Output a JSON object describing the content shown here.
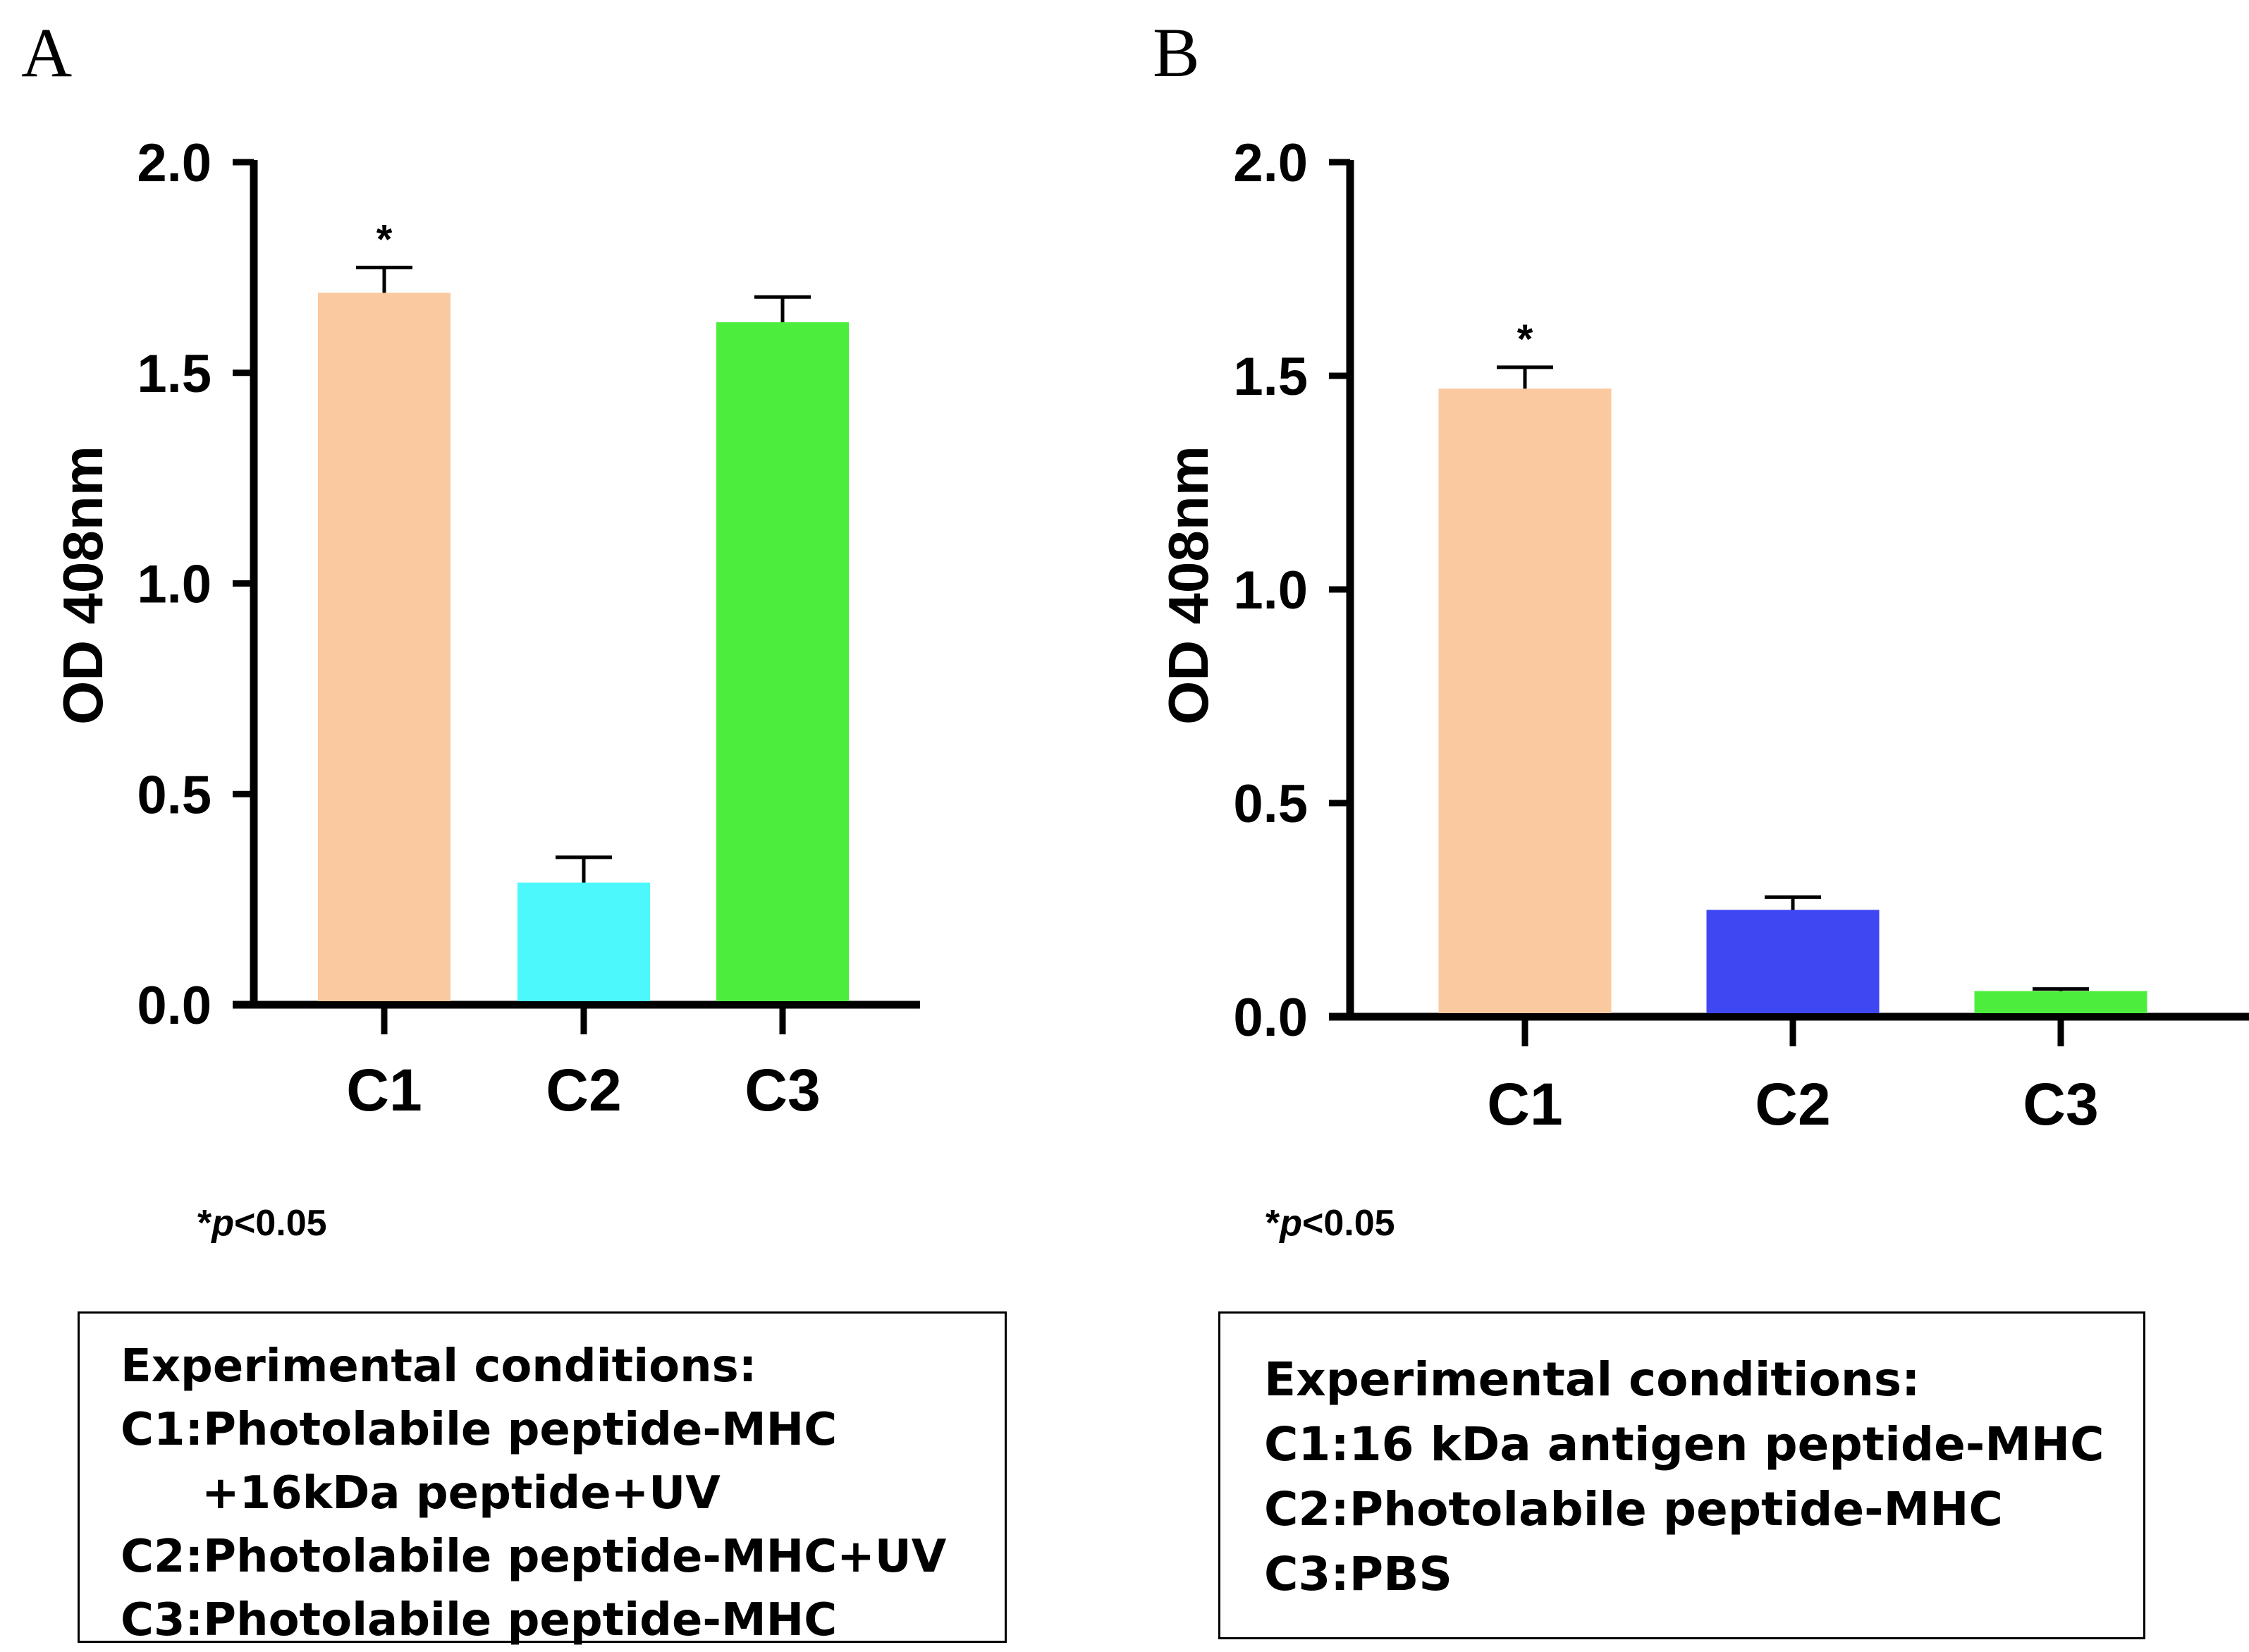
{
  "chart_data": [
    {
      "panel": "A",
      "type": "bar",
      "ylabel": "OD 408nm",
      "categories": [
        "C1",
        "C2",
        "C3"
      ],
      "values": [
        1.69,
        0.29,
        1.62
      ],
      "errors": [
        0.06,
        0.06,
        0.06
      ],
      "colors": [
        "#fbc9a0",
        "#4cf8fb",
        "#4ded3d"
      ],
      "ylim": [
        0,
        2.0
      ],
      "yticks": [
        "0.0",
        "0.5",
        "1.0",
        "1.5",
        "2.0"
      ],
      "significance": [
        {
          "category": "C1",
          "marker": "*"
        }
      ],
      "note": {
        "prefix": "*",
        "p": "p",
        "text": "<0.05"
      },
      "conditions": {
        "title": "Experimental conditions:",
        "lines": [
          "C1:Photolabile peptide-MHC",
          "+16kDa peptide+UV",
          "C2:Photolabile peptide-MHC+UV",
          "C3:Photolabile peptide-MHC"
        ]
      }
    },
    {
      "panel": "B",
      "type": "bar",
      "ylabel": "OD 408nm",
      "categories": [
        "C1",
        "C2",
        "C3"
      ],
      "values": [
        1.47,
        0.25,
        0.06
      ],
      "errors": [
        0.05,
        0.03,
        0.005
      ],
      "colors": [
        "#fbc9a0",
        "#3e47f2",
        "#4ded3d"
      ],
      "ylim": [
        0,
        2.0
      ],
      "yticks": [
        "0.0",
        "0.5",
        "1.0",
        "1.5",
        "2.0"
      ],
      "significance": [
        {
          "category": "C1",
          "marker": "*"
        }
      ],
      "note": {
        "prefix": "*",
        "p": "p",
        "text": "<0.05"
      },
      "conditions": {
        "title": "Experimental conditions:",
        "lines": [
          "C1:16 kDa antigen peptide-MHC",
          "C2:Photolabile peptide-MHC",
          "C3:PBS"
        ]
      }
    }
  ]
}
